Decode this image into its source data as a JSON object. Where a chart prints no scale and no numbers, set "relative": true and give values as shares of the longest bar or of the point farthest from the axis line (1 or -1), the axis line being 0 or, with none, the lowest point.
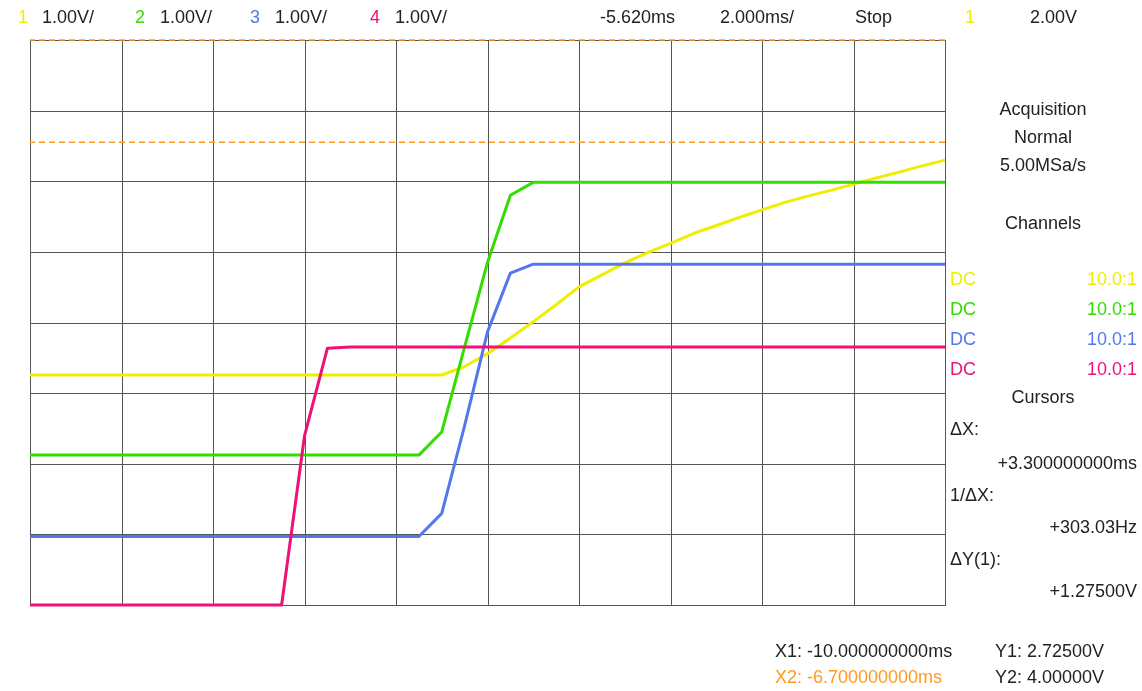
{
  "chart_data": {
    "type": "line",
    "relative": true,
    "grid": true,
    "line_style": "solid",
    "marker": "none",
    "categories": [
      null,
      null,
      null,
      null,
      null,
      null,
      null,
      null,
      null,
      null,
      null,
      null,
      null,
      null,
      null,
      null,
      null,
      null,
      null,
      null,
      null,
      null,
      null,
      null,
      null,
      null,
      null,
      null,
      null,
      null,
      null,
      null,
      null,
      null,
      null,
      null,
      null,
      null,
      null,
      null,
      null
    ],
    "series": [
      {
        "color": "#eeee00",
        "values": [
          0.517,
          0.517,
          0.517,
          0.517,
          0.517,
          0.517,
          0.517,
          0.517,
          0.517,
          0.517,
          0.517,
          0.517,
          0.517,
          0.517,
          0.517,
          0.517,
          0.517,
          0.517,
          0.517,
          0.536,
          0.565,
          0.6,
          0.637,
          0.675,
          0.715,
          0.742,
          0.769,
          0.792,
          0.813,
          0.835,
          0.853,
          0.871,
          0.888,
          0.905,
          0.919,
          0.932,
          0.946,
          0.96,
          0.973,
          0.987,
          1
        ]
      },
      {
        "color": "#33dd00",
        "values": [
          0.337,
          0.337,
          0.337,
          0.337,
          0.337,
          0.337,
          0.337,
          0.337,
          0.337,
          0.337,
          0.337,
          0.337,
          0.337,
          0.337,
          0.337,
          0.337,
          0.337,
          0.337,
          0.389,
          0.58,
          0.77,
          0.921,
          0.95,
          0.95,
          0.95,
          0.95,
          0.95,
          0.95,
          0.95,
          0.95,
          0.95,
          0.95,
          0.95,
          0.95,
          0.95,
          0.95,
          0.95,
          0.95,
          0.95,
          0.95,
          0.95
        ]
      },
      {
        "color": "#5577ee",
        "values": [
          0.154,
          0.154,
          0.154,
          0.154,
          0.154,
          0.154,
          0.154,
          0.154,
          0.154,
          0.154,
          0.154,
          0.154,
          0.154,
          0.154,
          0.154,
          0.154,
          0.154,
          0.154,
          0.206,
          0.403,
          0.614,
          0.746,
          0.766,
          0.766,
          0.766,
          0.766,
          0.766,
          0.766,
          0.766,
          0.766,
          0.766,
          0.766,
          0.766,
          0.766,
          0.766,
          0.766,
          0.766,
          0.766,
          0.766,
          0.766,
          0.766
        ]
      },
      {
        "color": "#ee1177",
        "values": [
          0,
          0,
          0,
          0,
          0,
          0,
          0,
          0,
          0,
          0,
          0,
          0,
          0.38,
          0.577,
          0.58,
          0.58,
          0.58,
          0.58,
          0.58,
          0.58,
          0.58,
          0.58,
          0.58,
          0.58,
          0.58,
          0.58,
          0.58,
          0.58,
          0.58,
          0.58,
          0.58,
          0.58,
          0.58,
          0.58,
          0.58,
          0.58,
          0.58,
          0.58,
          0.58,
          0.58,
          0.58
        ]
      }
    ],
    "ref_lines": [
      {
        "axis": "y",
        "value": 1.27,
        "label": null,
        "color": "#ff9922",
        "line_style": "dashed"
      },
      {
        "axis": "y",
        "value": 1.04,
        "label": null,
        "color": "#ff9922",
        "line_style": "dashed"
      }
    ],
    "annotations": [
      "1",
      "1.00V/",
      "2",
      "1.00V/",
      "3",
      "1.00V/",
      "4",
      "1.00V/",
      "-5.620ms",
      "2.000ms/",
      "Stop",
      "1",
      "2.00V",
      "Acquisition",
      "Normal",
      "5.00MSa/s",
      "Channels",
      "DC",
      "10.0:1",
      "DC",
      "10.0:1",
      "DC",
      "10.0:1",
      "DC",
      "10.0:1",
      "Cursors",
      "ΔX:",
      "+3.300000000ms",
      "1/ΔX:",
      "+303.03Hz",
      "ΔY(1):",
      "+1.27500V",
      "X1: -10.000000000ms",
      "X2: -6.700000000ms",
      "Y1: 2.72500V",
      "Y2: 4.00000V"
    ]
  }
}
